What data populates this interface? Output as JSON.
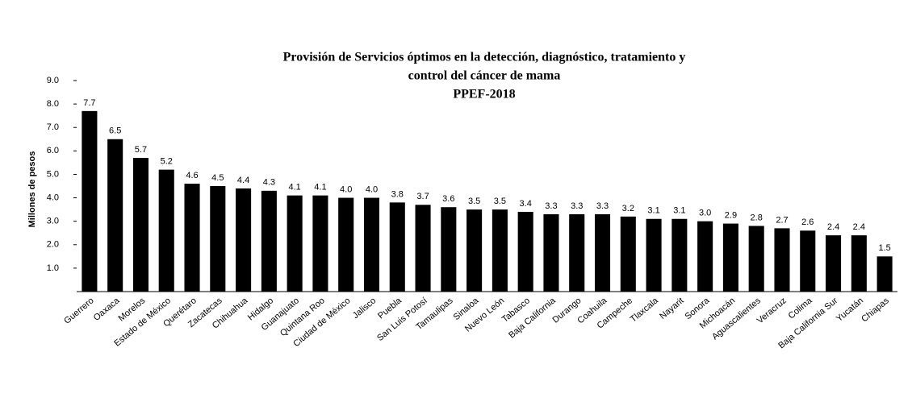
{
  "chart_data": {
    "type": "bar",
    "title": "Provisión de Servicios óptimos en la detección, diagnóstico, tratamiento y",
    "title_line2": "control del cáncer de mama",
    "subtitle": "PPEF-2018",
    "y_label": "Millones de pesos",
    "categories": [
      "Guerrero",
      "Oaxaca",
      "Morelos",
      "Estado de México",
      "Querétaro",
      "Zacatecas",
      "Chihuahua",
      "Hidalgo",
      "Guanajuato",
      "Quintana Roo",
      "Ciudad de México",
      "Jalisco",
      "Puebla",
      "San Luis Potosí",
      "Tamaulipas",
      "Sinaloa",
      "Nuevo León",
      "Tabasco",
      "Baja California",
      "Durango",
      "Coahuila",
      "Campeche",
      "Tlaxcala",
      "Nayarit",
      "Sonora",
      "Michoacán",
      "Aguascalientes",
      "Veracruz",
      "Colima",
      "Baja California Sur",
      "Yucatán",
      "Chiapas"
    ],
    "values": [
      7.7,
      6.5,
      5.7,
      5.2,
      4.6,
      4.5,
      4.4,
      4.3,
      4.1,
      4.1,
      4.0,
      4.0,
      3.8,
      3.7,
      3.6,
      3.5,
      3.5,
      3.4,
      3.3,
      3.3,
      3.3,
      3.2,
      3.1,
      3.1,
      3.0,
      2.9,
      2.8,
      2.7,
      2.6,
      2.4,
      2.4,
      1.5
    ],
    "value_labels": [
      "7.7",
      "6.5",
      "5.7",
      "5.2",
      "4.6",
      "4.5",
      "4.4",
      "4.3",
      "4.1",
      "4.1",
      "4.0",
      "4.0",
      "3.8",
      "3.7",
      "3.6",
      "3.5",
      "3.5",
      "3.4",
      "3.3",
      "3.3",
      "3.3",
      "3.2",
      "3.1",
      "3.1",
      "3.0",
      "2.9",
      "2.8",
      "2.7",
      "2.6",
      "2.4",
      "2.4",
      "1.5"
    ],
    "color": "#000000",
    "ylim": [
      0,
      9
    ],
    "yticks": [
      {
        "value": 1,
        "label": "1.0"
      },
      {
        "value": 2,
        "label": "2.0"
      },
      {
        "value": 3,
        "label": "3.0"
      },
      {
        "value": 4,
        "label": "4.0"
      },
      {
        "value": 5,
        "label": "5.0"
      },
      {
        "value": 6,
        "label": "6.0"
      },
      {
        "value": 7,
        "label": "7.0"
      },
      {
        "value": 8,
        "label": "8.0"
      },
      {
        "value": 9,
        "label": "9.0"
      }
    ],
    "grid": false
  }
}
